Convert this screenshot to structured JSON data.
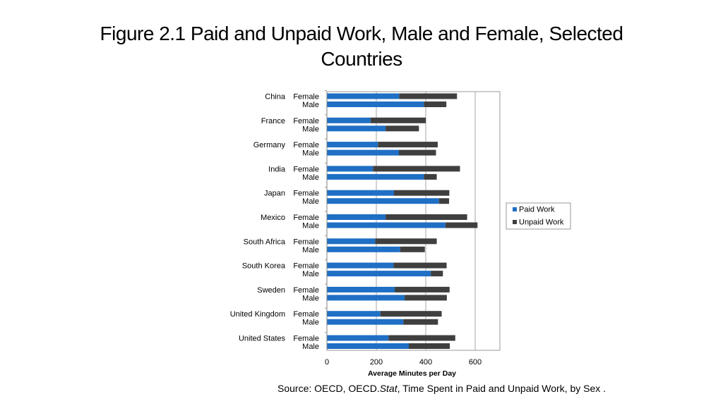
{
  "slide": {
    "title_line1": "Figure 2.1 Paid and Unpaid Work, Male and Female, Selected",
    "title_line2": "Countries"
  },
  "source": {
    "prefix": "Source: OECD, OECD.",
    "italic": "Stat",
    "suffix": ", Time Spent in Paid and Unpaid Work, by Sex ."
  },
  "chart_data": {
    "type": "bar",
    "orientation": "horizontal",
    "stacked": true,
    "xlabel": "Average Minutes per Day",
    "xlim": [
      0,
      700
    ],
    "xticks": [
      0,
      200,
      400,
      600
    ],
    "grid": "vertical",
    "legend_position": "right",
    "colors": {
      "paid": "#1f6fc5",
      "unpaid": "#3f3f3f"
    },
    "legend": [
      "Paid Work",
      "Unpaid Work"
    ],
    "groups": [
      {
        "country": "China",
        "rows": [
          {
            "sex": "Female",
            "paid": 291,
            "unpaid": 234
          },
          {
            "sex": "Male",
            "paid": 391,
            "unpaid": 91
          }
        ]
      },
      {
        "country": "France",
        "rows": [
          {
            "sex": "Female",
            "paid": 175,
            "unpaid": 224
          },
          {
            "sex": "Male",
            "paid": 236,
            "unpaid": 135
          }
        ]
      },
      {
        "country": "Germany",
        "rows": [
          {
            "sex": "Female",
            "paid": 205,
            "unpaid": 242
          },
          {
            "sex": "Male",
            "paid": 290,
            "unpaid": 150
          }
        ]
      },
      {
        "country": "India",
        "rows": [
          {
            "sex": "Female",
            "paid": 185,
            "unpaid": 352
          },
          {
            "sex": "Male",
            "paid": 391,
            "unpaid": 52
          }
        ]
      },
      {
        "country": "Japan",
        "rows": [
          {
            "sex": "Female",
            "paid": 270,
            "unpaid": 224
          },
          {
            "sex": "Male",
            "paid": 452,
            "unpaid": 41
          }
        ]
      },
      {
        "country": "Mexico",
        "rows": [
          {
            "sex": "Female",
            "paid": 236,
            "unpaid": 330
          },
          {
            "sex": "Male",
            "paid": 478,
            "unpaid": 130
          }
        ]
      },
      {
        "country": "South Africa",
        "rows": [
          {
            "sex": "Female",
            "paid": 194,
            "unpaid": 249
          },
          {
            "sex": "Male",
            "paid": 295,
            "unpaid": 100
          }
        ]
      },
      {
        "country": "South Korea",
        "rows": [
          {
            "sex": "Female",
            "paid": 268,
            "unpaid": 215
          },
          {
            "sex": "Male",
            "paid": 419,
            "unpaid": 49
          }
        ]
      },
      {
        "country": "Sweden",
        "rows": [
          {
            "sex": "Female",
            "paid": 273,
            "unpaid": 222
          },
          {
            "sex": "Male",
            "paid": 313,
            "unpaid": 171
          }
        ]
      },
      {
        "country": "United Kingdom",
        "rows": [
          {
            "sex": "Female",
            "paid": 215,
            "unpaid": 248
          },
          {
            "sex": "Male",
            "paid": 308,
            "unpaid": 140
          }
        ]
      },
      {
        "country": "United States",
        "rows": [
          {
            "sex": "Female",
            "paid": 248,
            "unpaid": 270
          },
          {
            "sex": "Male",
            "paid": 330,
            "unpaid": 166
          }
        ]
      }
    ]
  }
}
